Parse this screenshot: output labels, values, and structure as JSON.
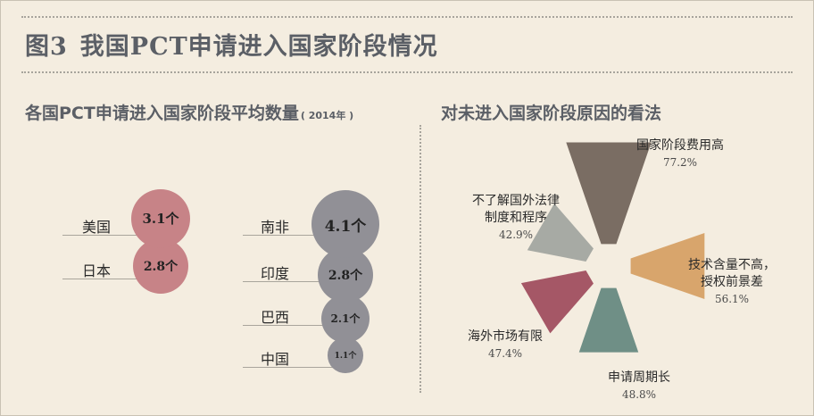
{
  "header": {
    "figure_no": "图3",
    "title": "我国PCT申请进入国家阶段情况"
  },
  "left_panel": {
    "title": "各国PCT申请进入国家阶段平均数量",
    "year_note": "( 2014年 )"
  },
  "right_panel": {
    "title": "对未进入国家阶段原因的看法"
  },
  "chart_data": [
    {
      "type": "bubble",
      "title": "各国PCT申请进入国家阶段平均数量",
      "subtitle": "( 2014年 )",
      "categories": [
        "美国",
        "日本",
        "南非",
        "印度",
        "巴西",
        "中国"
      ],
      "values": [
        3.1,
        2.8,
        4.1,
        2.8,
        2.1,
        1.1
      ],
      "value_labels": [
        "3.1个",
        "2.8个",
        "4.1个",
        "2.8个",
        "2.1个",
        "1.1个"
      ],
      "colors": {
        "美国": "#c78387",
        "日本": "#c78387",
        "南非": "#919096",
        "印度": "#919096",
        "巴西": "#919096",
        "中国": "#919096"
      }
    },
    {
      "type": "pie",
      "title": "对未进入国家阶段原因的看法",
      "categories": [
        "国家阶段费用高",
        "技术含量不高，授权前景差",
        "申请周期长",
        "海外市场有限",
        "不了解国外法律制度和程序"
      ],
      "label_lines": [
        [
          "国家阶段费用高"
        ],
        [
          "技术含量不高，",
          "授权前景差"
        ],
        [
          "申请周期长"
        ],
        [
          "海外市场有限"
        ],
        [
          "不了解国外法律",
          "制度和程序"
        ]
      ],
      "values": [
        77.2,
        56.1,
        48.8,
        47.4,
        42.9
      ],
      "value_labels": [
        "77.2%",
        "56.1%",
        "48.8%",
        "47.4%",
        "42.9%"
      ],
      "colors": [
        "#7a6d63",
        "#d8a56c",
        "#6f8f86",
        "#a55766",
        "#a7aaa4"
      ]
    }
  ]
}
